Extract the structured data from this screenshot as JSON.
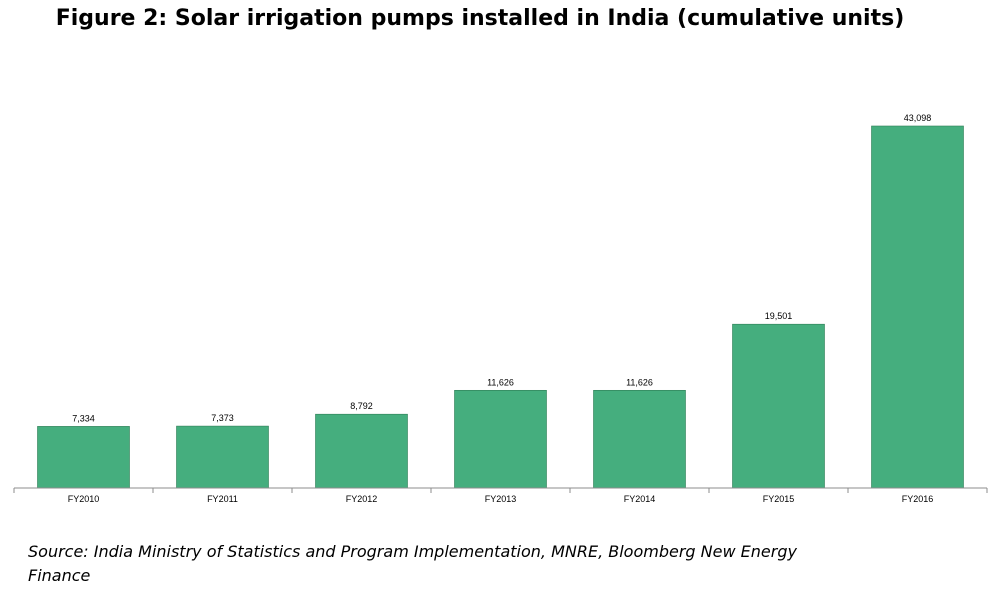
{
  "chart_data": {
    "type": "bar",
    "title": "Figure 2: Solar irrigation pumps installed in India (cumulative units)",
    "categories": [
      "FY2010",
      "FY2011",
      "FY2012",
      "FY2013",
      "FY2014",
      "FY2015",
      "FY2016"
    ],
    "values": [
      7334,
      7373,
      8792,
      11626,
      11626,
      19501,
      43098
    ],
    "data_labels": [
      "7,334",
      "7,373",
      "8,792",
      "11,626",
      "11,626",
      "19,501",
      "43,098"
    ],
    "xlabel": "",
    "ylabel": "",
    "ylim": [
      0,
      43098
    ],
    "grid": false,
    "legend": "none",
    "bar_color": "#45ae7e",
    "bar_border_color": "#2e7d55"
  },
  "source": "Source: India Ministry of Statistics and Program Implementation, MNRE, Bloomberg New Energy Finance"
}
